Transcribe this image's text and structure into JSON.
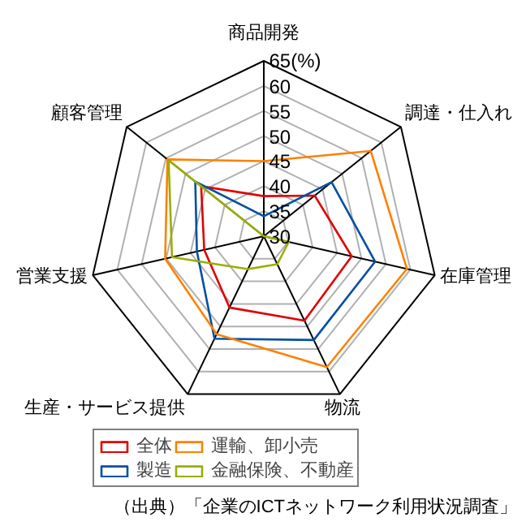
{
  "chart_data": {
    "type": "radar",
    "categories": [
      "商品開発",
      "調達・仕入れ",
      "在庫管理",
      "物流",
      "生産・サービス提供",
      "営業支援",
      "顧客管理"
    ],
    "series": [
      {
        "name": "全体",
        "color": "#e00000",
        "values": [
          38,
          43,
          48,
          48.7,
          45.8,
          42.2,
          46
        ]
      },
      {
        "name": "製造",
        "color": "#0050a0",
        "values": [
          34,
          47.3,
          52.8,
          53,
          52.7,
          43.7,
          47.5
        ]
      },
      {
        "name": "運輸、卸小売",
        "color": "#ff8000",
        "values": [
          45,
          57.3,
          59.3,
          59,
          51.7,
          50.2,
          54.6
        ]
      },
      {
        "name": "金融保険、不動産",
        "color": "#9aad00",
        "values": [
          30,
          30,
          35.1,
          36.2,
          37.3,
          48.8,
          54.3
        ]
      }
    ],
    "ylim": [
      30,
      65
    ],
    "yticks": [
      30,
      35,
      40,
      45,
      50,
      55,
      60,
      {
        "value": 65,
        "label": "65(%)"
      }
    ],
    "grid": true,
    "legend": "bottom",
    "annotations": [
      "（出典）「企業のICTネットワーク利用状況調査」"
    ]
  }
}
